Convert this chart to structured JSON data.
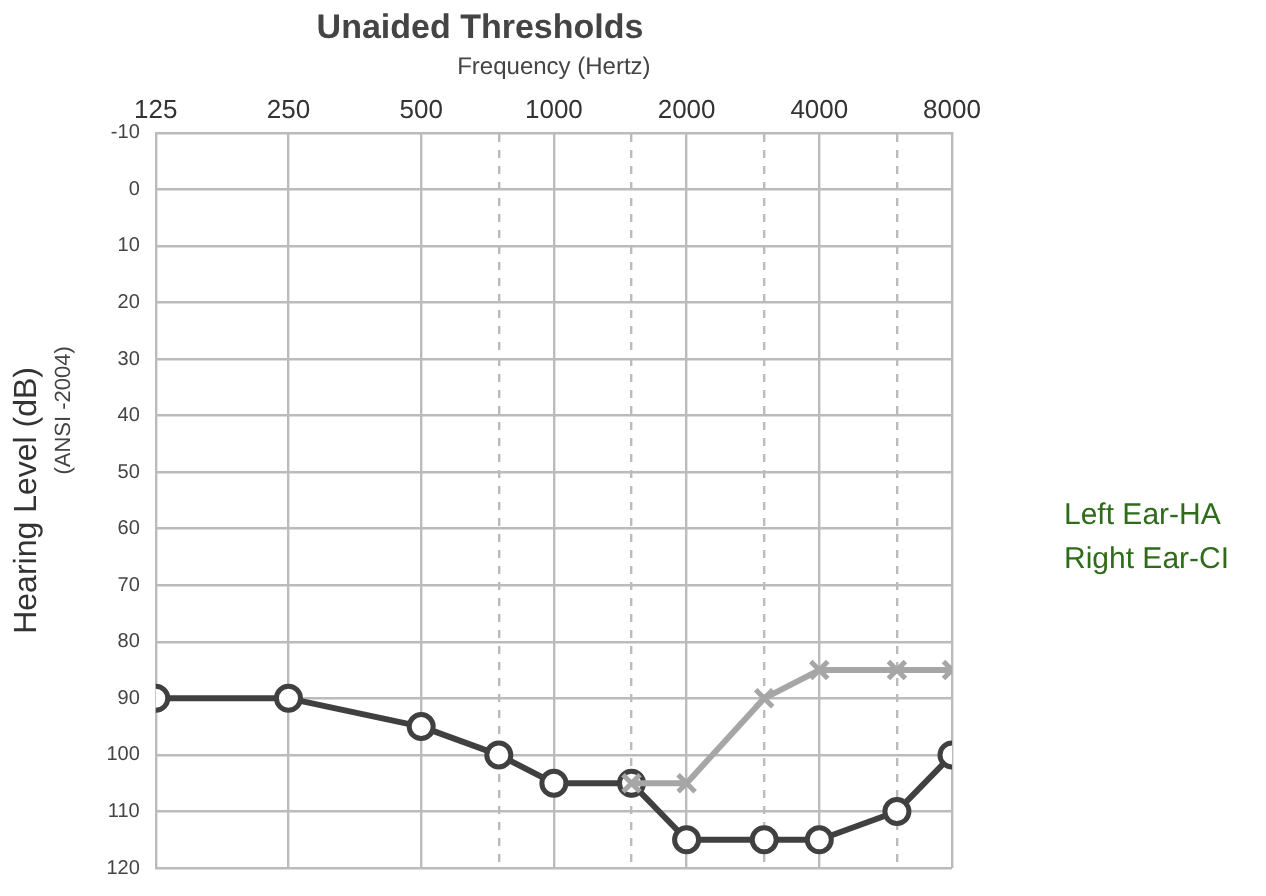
{
  "chart_data": {
    "type": "line",
    "title": "Unaided Thresholds",
    "xlabel": "Frequency (Hertz)",
    "ylabel": "Hearing Level (dB)",
    "log": "x",
    "grid": true,
    "legend": false,
    "x": [
      125,
      250,
      500,
      750,
      1000,
      1500,
      2000,
      3000,
      4000,
      6000,
      8000
    ],
    "xlim": [
      125,
      8000
    ],
    "xticks": [
      125,
      250,
      500,
      {
        "value": 750,
        "label": null
      },
      1000,
      {
        "value": 1500,
        "label": null
      },
      2000,
      {
        "value": 3000,
        "label": null
      },
      4000,
      {
        "value": 6000,
        "label": null
      },
      8000
    ],
    "ylim": [
      120,
      -10
    ],
    "yticks": [
      -10,
      0,
      10,
      20,
      30,
      40,
      50,
      60,
      70,
      80,
      90,
      100,
      110,
      120
    ],
    "series": [
      {
        "color": "#a6a6a6",
        "marker": "cross",
        "values": [
          null,
          null,
          null,
          null,
          null,
          105,
          105,
          90,
          85,
          85,
          85
        ]
      },
      {
        "color": "#404040",
        "marker": "circle",
        "values": [
          90,
          90,
          95,
          100,
          105,
          105,
          115,
          115,
          115,
          110,
          100
        ]
      }
    ],
    "annotations": [
      "(ANSI -2004)",
      "Left Ear-HA",
      "Right Ear-CI"
    ]
  }
}
